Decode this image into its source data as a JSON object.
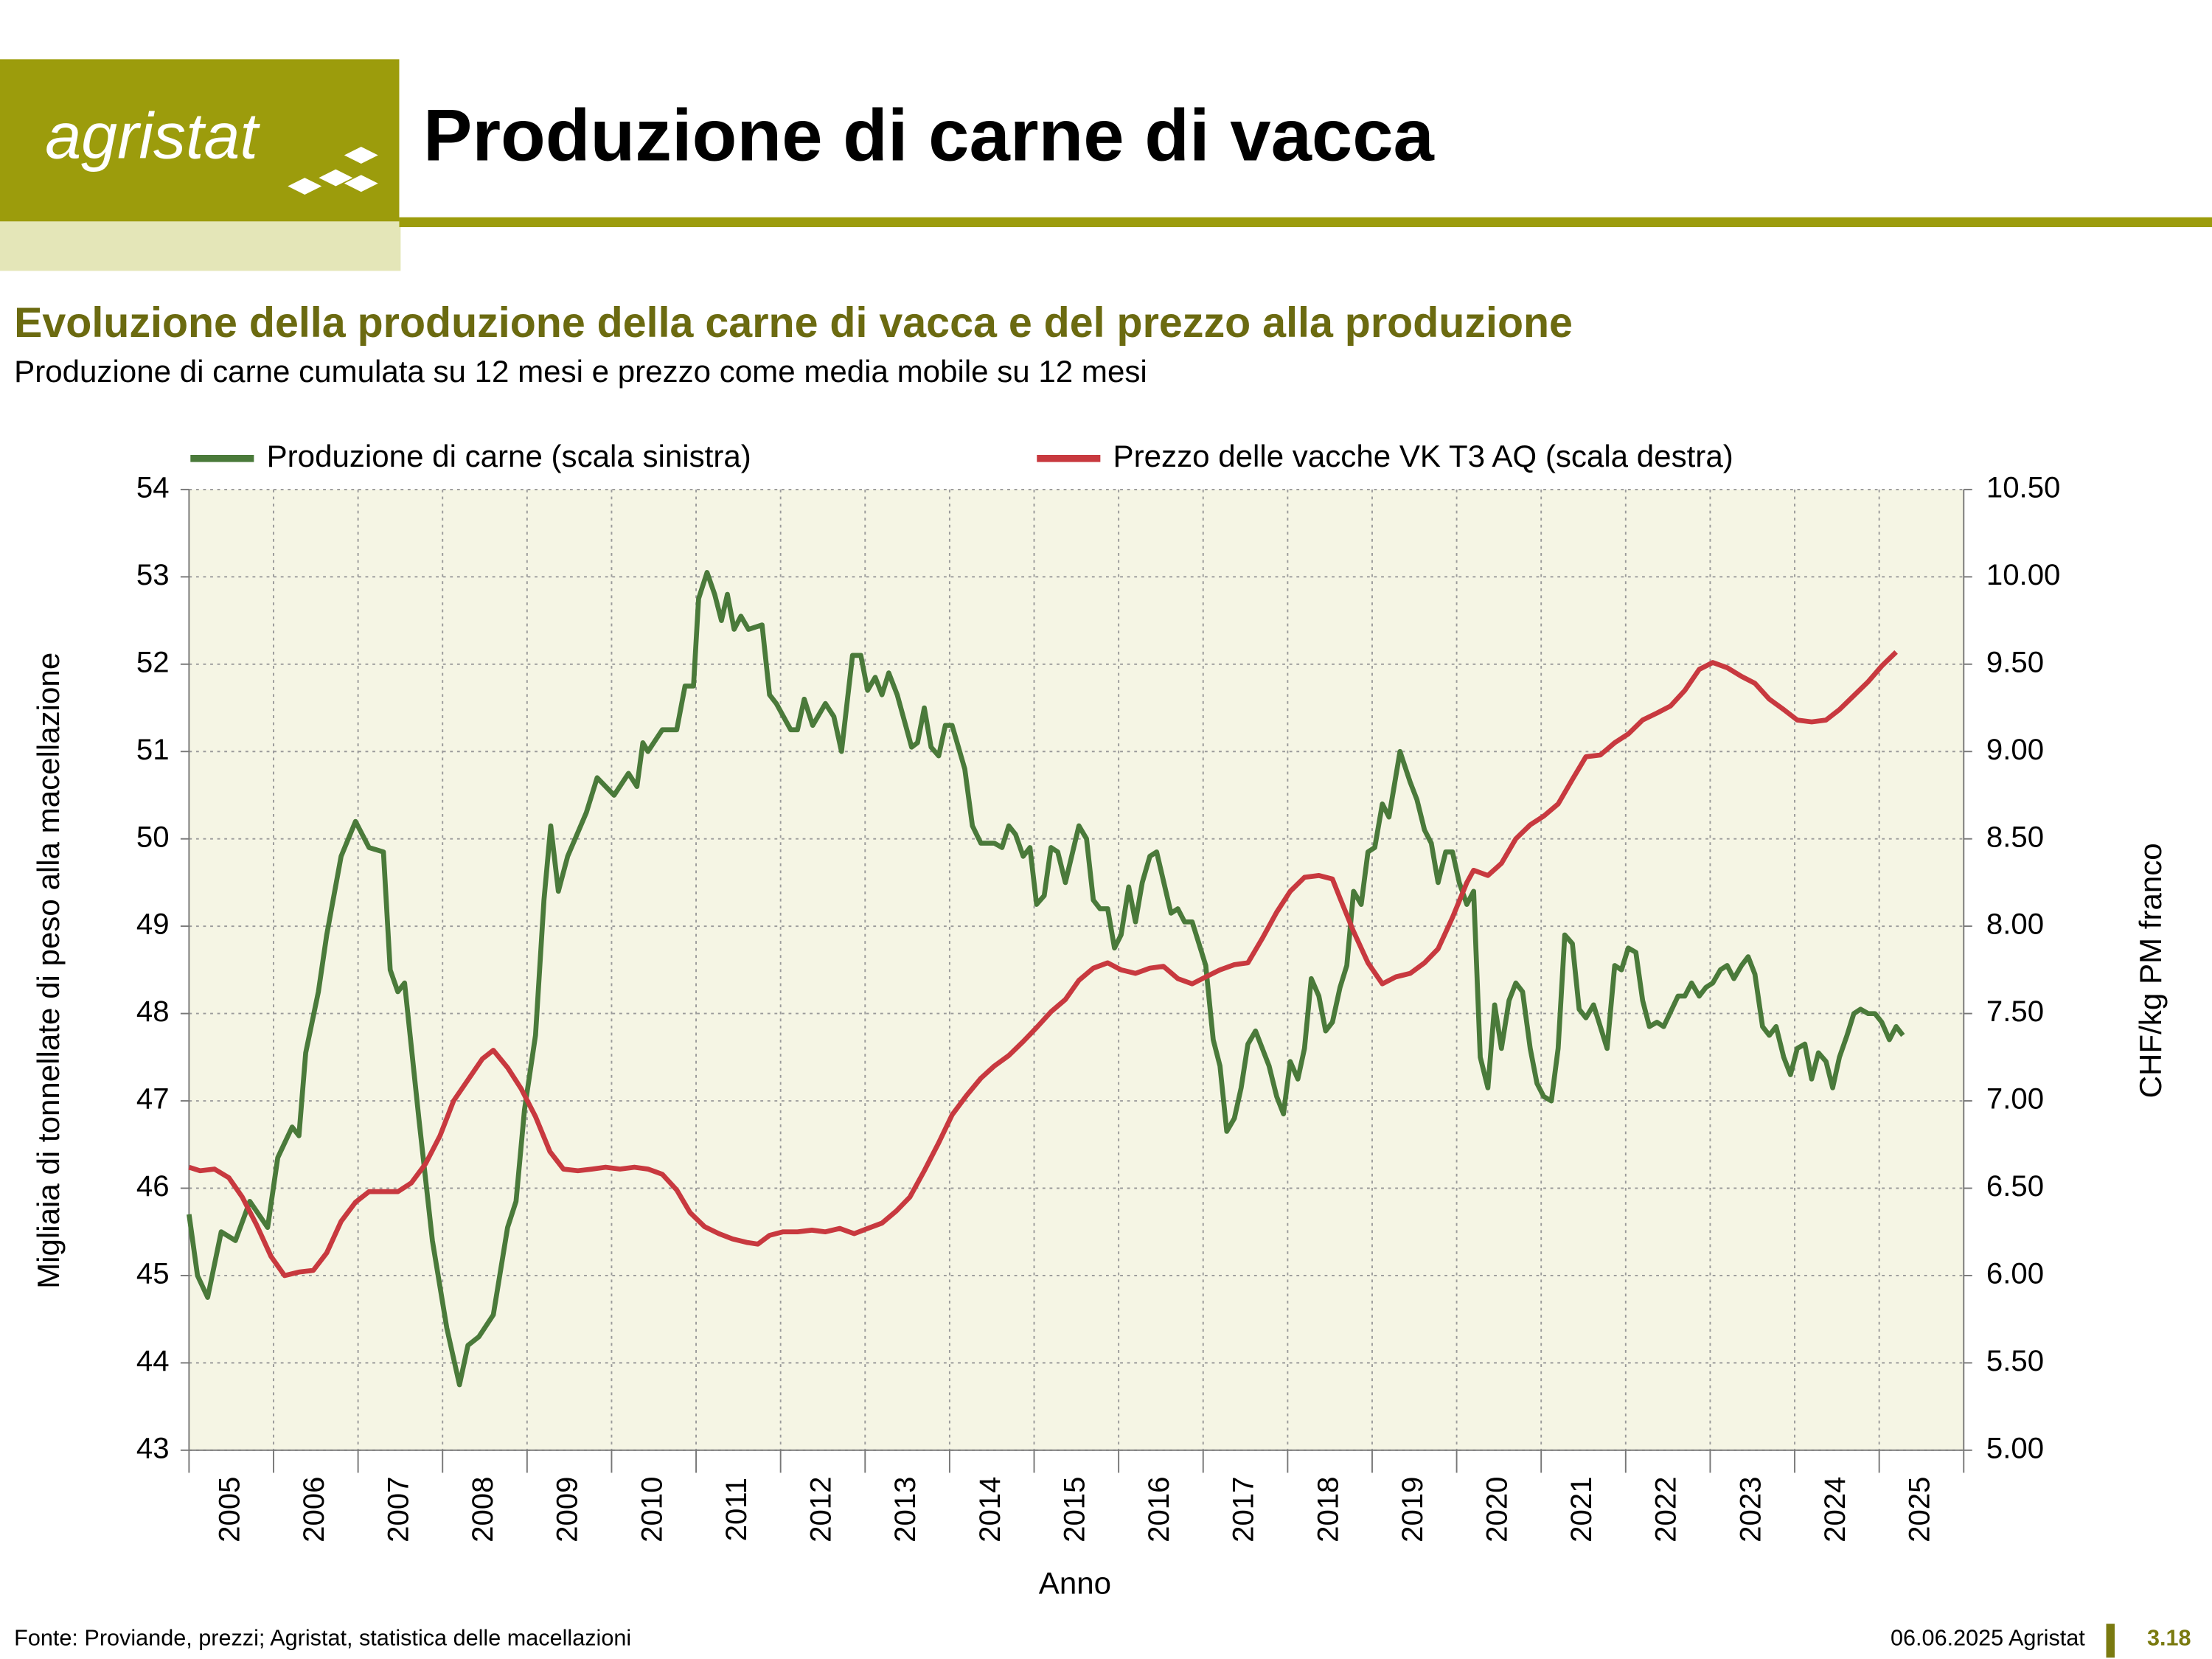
{
  "header": {
    "logo": "agristat",
    "title": "Produzione di carne di vacca"
  },
  "chart_data": {
    "type": "line",
    "title": "Evoluzione della produzione della carne di vacca e del prezzo alla produzione",
    "subtitle": "Produzione di carne cumulata su 12 mesi e prezzo come media mobile su 12 mesi",
    "xlabel": "Anno",
    "ylabel": "Migliaia di tonnellate di peso alla macellazione",
    "y2label": "CHF/kg PM franco",
    "xlim": [
      2005,
      2026
    ],
    "xticks": [
      2005,
      2006,
      2007,
      2008,
      2009,
      2010,
      2011,
      2012,
      2013,
      2014,
      2015,
      2016,
      2017,
      2018,
      2019,
      2020,
      2021,
      2022,
      2023,
      2024,
      2025
    ],
    "ylim": [
      43,
      54
    ],
    "yticks": [
      43,
      44,
      45,
      46,
      47,
      48,
      49,
      50,
      51,
      52,
      53,
      54
    ],
    "y2lim": [
      5,
      10.5
    ],
    "y2ticks": [
      {
        "value": 5,
        "label": "5.00"
      },
      {
        "value": 5.5,
        "label": "5.50"
      },
      {
        "value": 6,
        "label": "6.00"
      },
      {
        "value": 6.5,
        "label": "6.50"
      },
      {
        "value": 7,
        "label": "7.00"
      },
      {
        "value": 7.5,
        "label": "7.50"
      },
      {
        "value": 8,
        "label": "8.00"
      },
      {
        "value": 8.5,
        "label": "8.50"
      },
      {
        "value": 9,
        "label": "9.00"
      },
      {
        "value": 9.5,
        "label": "9.50"
      },
      {
        "value": 10,
        "label": "10.00"
      },
      {
        "value": 10.5,
        "label": "10.50"
      }
    ],
    "grid": true,
    "legend": "top",
    "series": [
      {
        "name": "Produzione di carne (scala sinistra)",
        "color": "#4a7a3a",
        "axis": "y",
        "x": [
          2005.0,
          2005.1,
          2005.22,
          2005.38,
          2005.55,
          2005.72,
          2005.93,
          2006.05,
          2006.22,
          2006.3,
          2006.38,
          2006.53,
          2006.63,
          2006.8,
          2006.97,
          2007.13,
          2007.3,
          2007.38,
          2007.47,
          2007.55,
          2007.72,
          2007.88,
          2008.05,
          2008.2,
          2008.3,
          2008.43,
          2008.6,
          2008.77,
          2008.87,
          2008.97,
          2009.1,
          2009.2,
          2009.28,
          2009.37,
          2009.48,
          2009.7,
          2009.83,
          2010.03,
          2010.2,
          2010.3,
          2010.37,
          2010.43,
          2010.6,
          2010.77,
          2010.87,
          2010.97,
          2011.03,
          2011.13,
          2011.22,
          2011.3,
          2011.37,
          2011.45,
          2011.53,
          2011.62,
          2011.78,
          2011.87,
          2011.95,
          2012.12,
          2012.2,
          2012.28,
          2012.38,
          2012.53,
          2012.63,
          2012.72,
          2012.85,
          2012.95,
          2013.03,
          2013.12,
          2013.2,
          2013.28,
          2013.38,
          2013.55,
          2013.62,
          2013.7,
          2013.78,
          2013.87,
          2013.95,
          2014.03,
          2014.18,
          2014.27,
          2014.37,
          2014.53,
          2014.62,
          2014.7,
          2014.78,
          2014.87,
          2014.95,
          2015.03,
          2015.12,
          2015.2,
          2015.28,
          2015.37,
          2015.53,
          2015.62,
          2015.7,
          2015.78,
          2015.87,
          2015.95,
          2016.03,
          2016.12,
          2016.2,
          2016.28,
          2016.37,
          2016.45,
          2016.62,
          2016.7,
          2016.78,
          2016.87,
          2017.03,
          2017.12,
          2017.2,
          2017.28,
          2017.37,
          2017.45,
          2017.53,
          2017.62,
          2017.7,
          2017.78,
          2017.87,
          2017.95,
          2018.03,
          2018.12,
          2018.2,
          2018.28,
          2018.37,
          2018.45,
          2018.53,
          2018.62,
          2018.7,
          2018.78,
          2018.87,
          2018.95,
          2019.03,
          2019.12,
          2019.2,
          2019.33,
          2019.45,
          2019.53,
          2019.62,
          2019.7,
          2019.78,
          2019.87,
          2019.95,
          2020.03,
          2020.12,
          2020.2,
          2020.28,
          2020.37,
          2020.45,
          2020.53,
          2020.62,
          2020.7,
          2020.78,
          2020.87,
          2020.95,
          2021.03,
          2021.12,
          2021.2,
          2021.28,
          2021.37,
          2021.45,
          2021.53,
          2021.62,
          2021.7,
          2021.78,
          2021.87,
          2021.95,
          2022.03,
          2022.12,
          2022.2,
          2022.28,
          2022.37,
          2022.45,
          2022.62,
          2022.7,
          2022.78,
          2022.87,
          2022.95,
          2023.03,
          2023.12,
          2023.2,
          2023.28,
          2023.37,
          2023.45,
          2023.53,
          2023.62,
          2023.7,
          2023.78,
          2023.87,
          2023.95,
          2024.03,
          2024.12,
          2024.2,
          2024.28,
          2024.37,
          2024.45,
          2024.53,
          2024.62,
          2024.7,
          2024.78,
          2024.87,
          2024.95,
          2025.03,
          2025.12,
          2025.2,
          2025.28
        ],
        "values": [
          45.7,
          45.0,
          44.75,
          45.5,
          45.4,
          45.85,
          45.55,
          46.35,
          46.7,
          46.6,
          47.55,
          48.25,
          48.9,
          49.8,
          50.2,
          49.9,
          49.85,
          48.5,
          48.25,
          48.35,
          46.8,
          45.4,
          44.4,
          43.75,
          44.2,
          44.3,
          44.55,
          45.55,
          45.85,
          46.9,
          47.75,
          49.3,
          50.15,
          49.4,
          49.8,
          50.3,
          50.7,
          50.5,
          50.75,
          50.6,
          51.1,
          51.0,
          51.25,
          51.25,
          51.75,
          51.75,
          52.75,
          53.05,
          52.8,
          52.5,
          52.8,
          52.4,
          52.55,
          52.4,
          52.45,
          51.65,
          51.55,
          51.25,
          51.25,
          51.6,
          51.3,
          51.55,
          51.4,
          51.0,
          52.1,
          52.1,
          51.7,
          51.85,
          51.65,
          51.9,
          51.65,
          51.05,
          51.1,
          51.5,
          51.05,
          50.95,
          51.3,
          51.3,
          50.8,
          50.15,
          49.95,
          49.95,
          49.9,
          50.15,
          50.05,
          49.8,
          49.9,
          49.25,
          49.35,
          49.9,
          49.85,
          49.5,
          50.15,
          50.0,
          49.3,
          49.2,
          49.2,
          48.75,
          48.9,
          49.45,
          49.05,
          49.5,
          49.8,
          49.85,
          49.15,
          49.2,
          49.05,
          49.05,
          48.55,
          47.7,
          47.4,
          46.65,
          46.8,
          47.15,
          47.65,
          47.8,
          47.6,
          47.4,
          47.05,
          46.85,
          47.45,
          47.25,
          47.6,
          48.4,
          48.2,
          47.8,
          47.9,
          48.3,
          48.55,
          49.4,
          49.25,
          49.85,
          49.9,
          50.4,
          50.25,
          51.0,
          50.65,
          50.45,
          50.1,
          49.95,
          49.5,
          49.85,
          49.85,
          49.5,
          49.25,
          49.4,
          47.5,
          47.15,
          48.1,
          47.6,
          48.15,
          48.35,
          48.25,
          47.6,
          47.2,
          47.05,
          47.0,
          47.6,
          48.9,
          48.8,
          48.05,
          47.95,
          48.1,
          47.85,
          47.6,
          48.55,
          48.5,
          48.75,
          48.7,
          48.15,
          47.85,
          47.9,
          47.85,
          48.2,
          48.2,
          48.35,
          48.2,
          48.3,
          48.35,
          48.5,
          48.55,
          48.4,
          48.55,
          48.65,
          48.45,
          47.85,
          47.75,
          47.85,
          47.5,
          47.3,
          47.6,
          47.65,
          47.25,
          47.55,
          47.45,
          47.15,
          47.5,
          47.75,
          48.0,
          48.05,
          48.0,
          48.0,
          47.9,
          47.7,
          47.85,
          47.75
        ]
      },
      {
        "name": "Prezzo delle vacche VK T3 AQ (scala destra)",
        "color": "#c8393f",
        "axis": "y2",
        "x": [
          2005.0,
          2005.13,
          2005.3,
          2005.47,
          2005.63,
          2005.8,
          2005.97,
          2006.13,
          2006.3,
          2006.47,
          2006.63,
          2006.8,
          2006.97,
          2007.13,
          2007.23,
          2007.47,
          2007.63,
          2007.8,
          2007.97,
          2008.13,
          2008.3,
          2008.47,
          2008.6,
          2008.77,
          2008.93,
          2009.1,
          2009.27,
          2009.43,
          2009.6,
          2009.77,
          2009.93,
          2010.1,
          2010.27,
          2010.43,
          2010.6,
          2010.77,
          2010.93,
          2011.1,
          2011.27,
          2011.43,
          2011.6,
          2011.73,
          2011.87,
          2012.03,
          2012.2,
          2012.37,
          2012.53,
          2012.7,
          2012.87,
          2013.03,
          2013.2,
          2013.37,
          2013.53,
          2013.7,
          2013.87,
          2014.03,
          2014.2,
          2014.37,
          2014.53,
          2014.7,
          2014.87,
          2015.03,
          2015.2,
          2015.37,
          2015.53,
          2015.7,
          2015.87,
          2016.03,
          2016.2,
          2016.37,
          2016.53,
          2016.7,
          2016.87,
          2017.03,
          2017.2,
          2017.37,
          2017.53,
          2017.7,
          2017.87,
          2018.03,
          2018.2,
          2018.37,
          2018.53,
          2018.62,
          2018.78,
          2018.95,
          2019.12,
          2019.28,
          2019.45,
          2019.62,
          2019.78,
          2019.95,
          2020.12,
          2020.2,
          2020.37,
          2020.53,
          2020.7,
          2020.87,
          2021.03,
          2021.2,
          2021.37,
          2021.53,
          2021.7,
          2021.87,
          2022.03,
          2022.2,
          2022.37,
          2022.53,
          2022.7,
          2022.87,
          2023.03,
          2023.2,
          2023.37,
          2023.53,
          2023.7,
          2023.87,
          2024.03,
          2024.2,
          2024.37,
          2024.53,
          2024.7,
          2024.87,
          2025.03,
          2025.2
        ],
        "values": [
          6.62,
          6.6,
          6.61,
          6.56,
          6.45,
          6.29,
          6.11,
          6.0,
          6.02,
          6.03,
          6.13,
          6.31,
          6.42,
          6.48,
          6.48,
          6.48,
          6.53,
          6.64,
          6.8,
          7.0,
          7.12,
          7.24,
          7.29,
          7.19,
          7.07,
          6.91,
          6.71,
          6.61,
          6.6,
          6.61,
          6.62,
          6.61,
          6.62,
          6.61,
          6.58,
          6.49,
          6.36,
          6.28,
          6.24,
          6.21,
          6.19,
          6.18,
          6.23,
          6.25,
          6.25,
          6.26,
          6.25,
          6.27,
          6.24,
          6.27,
          6.3,
          6.37,
          6.45,
          6.6,
          6.76,
          6.92,
          7.03,
          7.13,
          7.2,
          7.26,
          7.34,
          7.42,
          7.51,
          7.58,
          7.69,
          7.76,
          7.79,
          7.75,
          7.73,
          7.76,
          7.77,
          7.7,
          7.67,
          7.71,
          7.75,
          7.78,
          7.79,
          7.93,
          8.08,
          8.2,
          8.28,
          8.29,
          8.27,
          8.16,
          7.97,
          7.79,
          7.67,
          7.71,
          7.73,
          7.79,
          7.87,
          8.05,
          8.25,
          8.32,
          8.29,
          8.36,
          8.5,
          8.58,
          8.63,
          8.7,
          8.84,
          8.97,
          8.98,
          9.05,
          9.1,
          9.18,
          9.22,
          9.26,
          9.35,
          9.47,
          9.51,
          9.48,
          9.43,
          9.39,
          9.3,
          9.24,
          9.18,
          9.17,
          9.18,
          9.24,
          9.32,
          9.4,
          9.49,
          9.57
        ]
      }
    ]
  },
  "footer": {
    "source": "Fonte: Proviande, prezzi; Agristat, statistica delle macellazioni",
    "date": "06.06.2025 Agristat",
    "page": "3.18"
  }
}
